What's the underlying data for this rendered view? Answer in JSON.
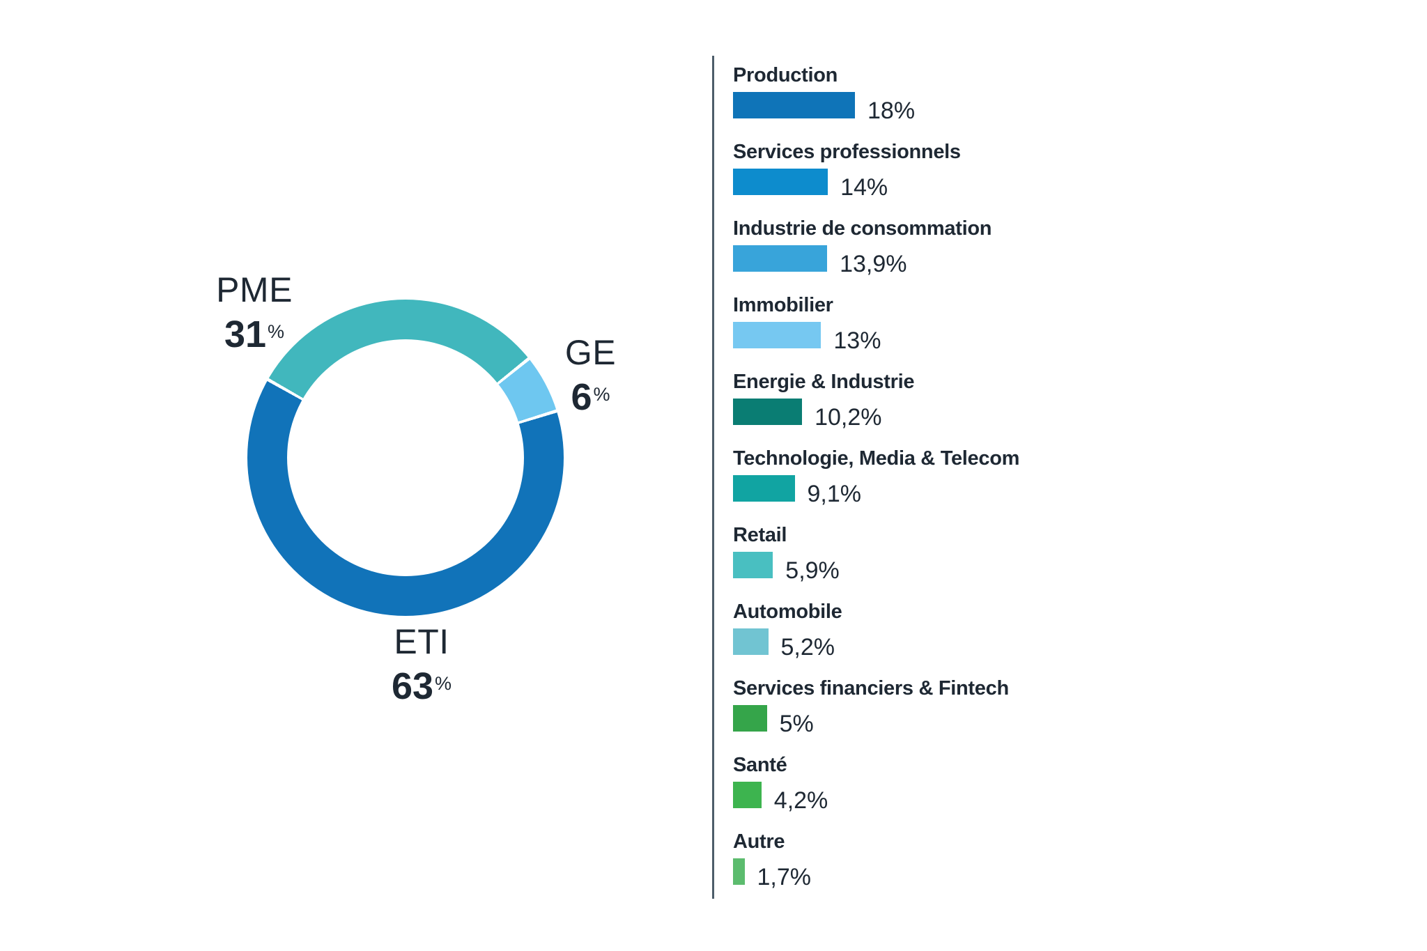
{
  "chart_data": [
    {
      "type": "pie",
      "subtype": "donut",
      "title": "",
      "labels": [
        "ETI",
        "PME",
        "GE"
      ],
      "values": [
        63,
        31,
        6
      ],
      "unit": "%",
      "colors": [
        "#1173b9",
        "#41b7bd",
        "#6ec7f0"
      ],
      "annotations": [
        "ETI 63%",
        "PME 31%",
        "GE 6%"
      ],
      "legend": false
    },
    {
      "type": "bar",
      "orientation": "horizontal",
      "title": "",
      "categories": [
        "Production",
        "Services professionnels",
        "Industrie de consommation",
        "Immobilier",
        "Energie & Industrie",
        "Technologie, Media & Telecom",
        "Retail",
        "Automobile",
        "Services financiers & Fintech",
        "Santé",
        "Autre"
      ],
      "values": [
        18,
        14,
        13.9,
        13,
        10.2,
        9.1,
        5.9,
        5.2,
        5,
        4.2,
        1.7
      ],
      "value_labels": [
        "18%",
        "14%",
        "13,9%",
        "13%",
        "10,2%",
        "9,1%",
        "5,9%",
        "5,2%",
        "5%",
        "4,2%",
        "1,7%"
      ],
      "unit": "%",
      "xlim": [
        0,
        18
      ],
      "grid": false,
      "legend": false
    }
  ],
  "donut": {
    "start_angle_deg": -60.4,
    "segments": [
      {
        "label": "PME",
        "value": 31,
        "color": "#41b7bd"
      },
      {
        "label": "GE",
        "value": 6,
        "color": "#6ec7f0"
      },
      {
        "label": "ETI",
        "value": 63,
        "color": "#1173b9"
      }
    ],
    "pme": {
      "name": "PME",
      "value": "31",
      "pct": "%"
    },
    "ge": {
      "name": "GE",
      "value": "6",
      "pct": "%"
    },
    "eti": {
      "name": "ETI",
      "value": "63",
      "pct": "%"
    }
  },
  "bars": {
    "items": [
      {
        "label": "Production",
        "value": 18,
        "display": "18%",
        "color": "#0f74b8"
      },
      {
        "label": "Services professionnels",
        "value": 14,
        "display": "14%",
        "color": "#0d8ccd"
      },
      {
        "label": "Industrie de consommation",
        "value": 13.9,
        "display": "13,9%",
        "color": "#38a4da"
      },
      {
        "label": "Immobilier",
        "value": 13,
        "display": "13%",
        "color": "#76c8f1"
      },
      {
        "label": "Energie & Industrie",
        "value": 10.2,
        "display": "10,2%",
        "color": "#0a7d73"
      },
      {
        "label": "Technologie, Media & Telecom",
        "value": 9.1,
        "display": "9,1%",
        "color": "#11a4a2"
      },
      {
        "label": "Retail",
        "value": 5.9,
        "display": "5,9%",
        "color": "#49bfc1"
      },
      {
        "label": "Automobile",
        "value": 5.2,
        "display": "5,2%",
        "color": "#71c4d2"
      },
      {
        "label": "Services financiers & Fintech",
        "value": 5,
        "display": "5%",
        "color": "#35a54a"
      },
      {
        "label": "Santé",
        "value": 4.2,
        "display": "4,2%",
        "color": "#3db44f"
      },
      {
        "label": "Autre",
        "value": 1.7,
        "display": "1,7%",
        "color": "#5cbc6e"
      }
    ]
  },
  "colors": {
    "text": "#1e2833",
    "divider": "#4d5d6a",
    "background": "#ffffff"
  }
}
